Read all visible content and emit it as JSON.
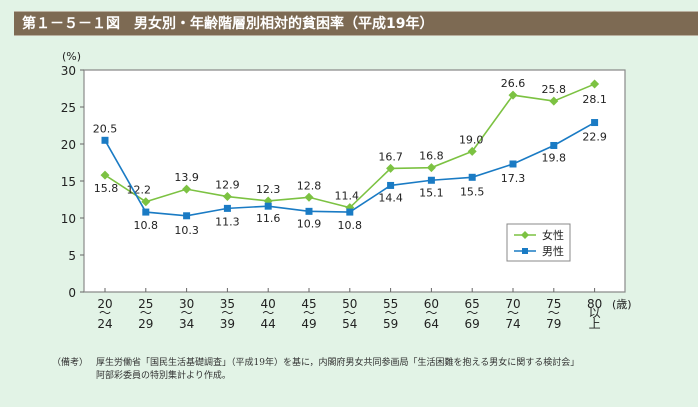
{
  "title": "第１－５－１図　男女別・年齢階層別相対的貧困率（平成19年）",
  "chart_data": {
    "type": "line",
    "title": "男女別・年齢階層別相対的貧困率（平成19年）",
    "ylabel": "(%)",
    "xlabel": "(歳)",
    "ylim": [
      0,
      30
    ],
    "yticks": [
      0,
      5,
      10,
      15,
      20,
      25,
      30
    ],
    "grid": false,
    "legend_position": "lower-right",
    "categories": [
      [
        "20",
        "〜",
        "24"
      ],
      [
        "25",
        "〜",
        "29"
      ],
      [
        "30",
        "〜",
        "34"
      ],
      [
        "35",
        "〜",
        "39"
      ],
      [
        "40",
        "〜",
        "44"
      ],
      [
        "45",
        "〜",
        "49"
      ],
      [
        "50",
        "〜",
        "54"
      ],
      [
        "55",
        "〜",
        "59"
      ],
      [
        "60",
        "〜",
        "64"
      ],
      [
        "65",
        "〜",
        "69"
      ],
      [
        "70",
        "〜",
        "74"
      ],
      [
        "75",
        "〜",
        "79"
      ],
      [
        "80",
        "以",
        "上"
      ]
    ],
    "series": [
      {
        "name": "女性",
        "color": "#7cc242",
        "marker": "diamond",
        "values": [
          15.8,
          12.2,
          13.9,
          12.9,
          12.3,
          12.8,
          11.4,
          16.7,
          16.8,
          19.0,
          26.6,
          25.8,
          28.1
        ],
        "labels": [
          "15.8",
          "12.2",
          "13.9",
          "12.9",
          "12.3",
          "12.8",
          "11.4",
          "16.7",
          "16.8",
          "19.0",
          "26.6",
          "25.8",
          "28.1"
        ]
      },
      {
        "name": "男性",
        "color": "#1a7bc4",
        "marker": "square",
        "values": [
          20.5,
          10.8,
          10.3,
          11.3,
          11.6,
          10.9,
          10.8,
          14.4,
          15.1,
          15.5,
          17.3,
          19.8,
          22.9
        ],
        "labels": [
          "20.5",
          "10.8",
          "10.3",
          "11.3",
          "11.6",
          "10.9",
          "10.8",
          "14.4",
          "15.1",
          "15.5",
          "17.3",
          "19.8",
          "22.9"
        ]
      }
    ]
  },
  "note": {
    "label": "（備考）",
    "line1": "厚生労働省「国民生活基礎調査」（平成19年）を基に，内閣府男女共同参画局「生活困難を抱える男女に関する検討会」",
    "line2": "阿部彩委員の特別集計より作成。"
  }
}
